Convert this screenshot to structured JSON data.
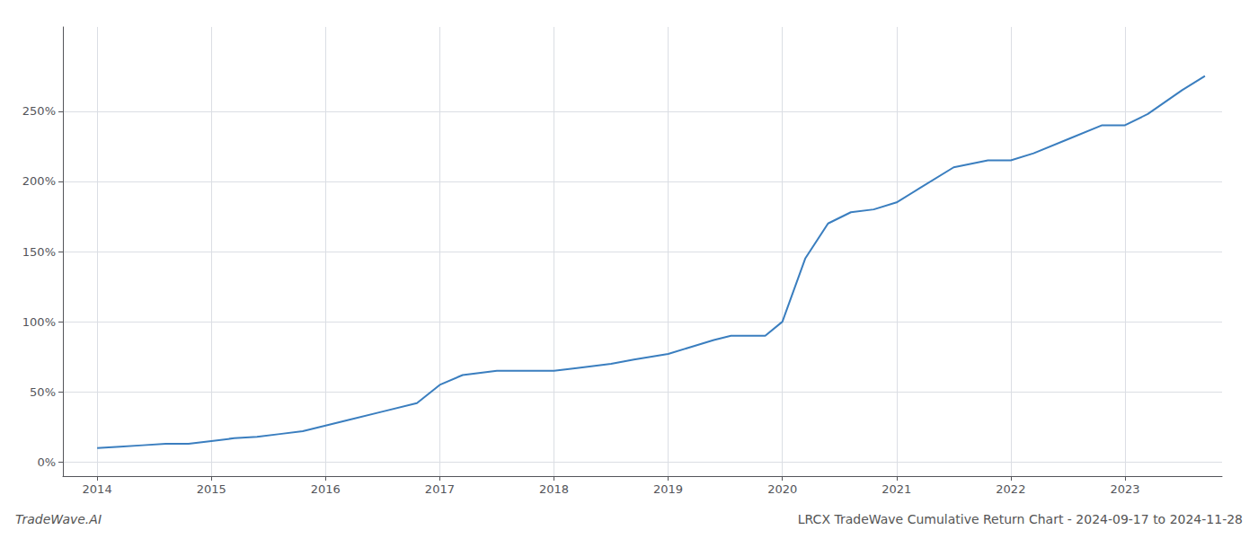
{
  "chart_data": {
    "type": "line",
    "title": "LRCX TradeWave Cumulative Return Chart - 2024-09-17 to 2024-11-28",
    "annotations": [
      "TradeWave.AI"
    ],
    "color": "#3a7ebf",
    "x": [
      2014.0,
      2014.2,
      2014.4,
      2014.6,
      2014.8,
      2015.0,
      2015.2,
      2015.4,
      2015.6,
      2015.8,
      2016.0,
      2016.2,
      2016.5,
      2016.8,
      2017.0,
      2017.2,
      2017.5,
      2017.75,
      2018.0,
      2018.2,
      2018.5,
      2018.7,
      2019.0,
      2019.2,
      2019.4,
      2019.55,
      2019.7,
      2019.85,
      2020.0,
      2020.2,
      2020.4,
      2020.6,
      2020.8,
      2021.0,
      2021.2,
      2021.5,
      2021.8,
      2022.0,
      2022.2,
      2022.5,
      2022.8,
      2023.0,
      2023.2,
      2023.5,
      2023.7
    ],
    "values": [
      10,
      11,
      12,
      13,
      13,
      15,
      17,
      18,
      20,
      22,
      26,
      30,
      36,
      42,
      55,
      62,
      65,
      65,
      65,
      67,
      70,
      73,
      77,
      82,
      87,
      90,
      90,
      90,
      100,
      145,
      170,
      178,
      180,
      185,
      195,
      210,
      215,
      215,
      220,
      230,
      240,
      240,
      248,
      265,
      275
    ],
    "xlim": [
      2013.7,
      2023.85
    ],
    "xticks": [
      2014,
      2015,
      2016,
      2017,
      2018,
      2019,
      2020,
      2021,
      2022,
      2023
    ],
    "ylim": [
      -10,
      310
    ],
    "yticks": [
      {
        "value": 0,
        "label": "0%"
      },
      {
        "value": 50,
        "label": "50%"
      },
      {
        "value": 100,
        "label": "100%"
      },
      {
        "value": 150,
        "label": "150%"
      },
      {
        "value": 200,
        "label": "200%"
      },
      {
        "value": 250,
        "label": "250%"
      }
    ],
    "grid": true
  }
}
